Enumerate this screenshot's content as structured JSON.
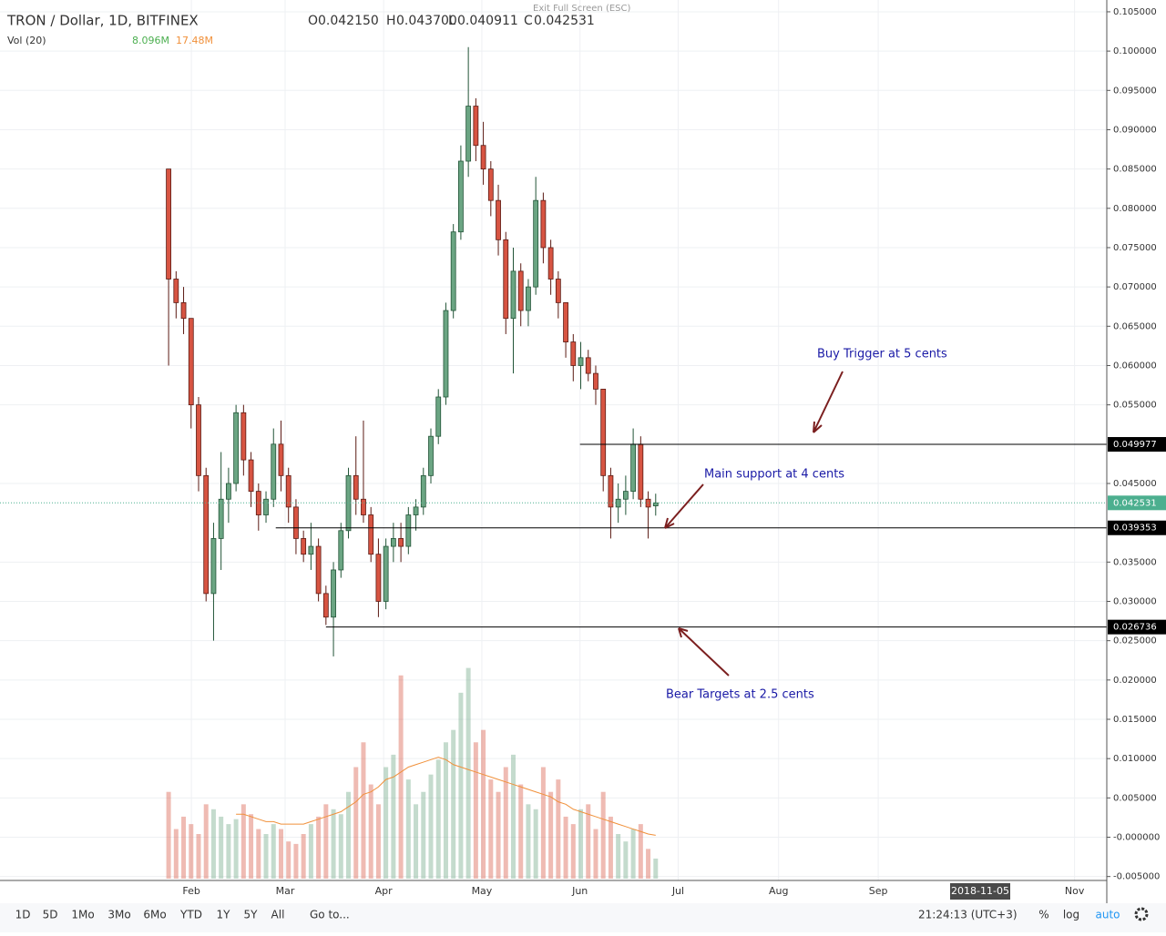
{
  "header": {
    "symbol": "TRON / Dollar, 1D, BITFINEX",
    "ohlc_letters": [
      "O",
      "H",
      "L",
      "C"
    ],
    "ohlc_values": [
      "0.042150",
      "0.043700",
      "0.040911",
      "0.042531"
    ],
    "vol_label": "Vol (20)",
    "vol_value": "8.096M",
    "vol_ma": "17.48M",
    "exit": "Exit Full Screen (ESC)"
  },
  "chart_data": {
    "type": "candlestick",
    "xlim": [
      -22.5,
      125.2
    ],
    "xticks": [
      {
        "value": 3.04,
        "label": "Feb"
      },
      {
        "value": 15.55,
        "label": "Mar"
      },
      {
        "value": 28.7,
        "label": "Apr"
      },
      {
        "value": 41.8,
        "label": "May"
      },
      {
        "value": 54.9,
        "label": "Jun"
      },
      {
        "value": 68.0,
        "label": "Jul"
      },
      {
        "value": 81.4,
        "label": "Aug"
      },
      {
        "value": 94.7,
        "label": "Sep"
      },
      {
        "value": 120.9,
        "label": "Nov"
      }
    ],
    "crosshair_label": "2018-11-05",
    "ylim": [
      -0.0055,
      0.1065
    ],
    "yticks": [
      {
        "value": 0.105,
        "label": "0.105000"
      },
      {
        "value": 0.1,
        "label": "0.100000"
      },
      {
        "value": 0.095,
        "label": "0.095000"
      },
      {
        "value": 0.09,
        "label": "0.090000"
      },
      {
        "value": 0.085,
        "label": "0.085000"
      },
      {
        "value": 0.08,
        "label": "0.080000"
      },
      {
        "value": 0.075,
        "label": "0.075000"
      },
      {
        "value": 0.07,
        "label": "0.070000"
      },
      {
        "value": 0.065,
        "label": "0.065000"
      },
      {
        "value": 0.06,
        "label": "0.060000"
      },
      {
        "value": 0.055,
        "label": "0.055000"
      },
      {
        "value": 0.045,
        "label": "0.045000"
      },
      {
        "value": 0.035,
        "label": "0.035000"
      },
      {
        "value": 0.03,
        "label": "0.030000"
      },
      {
        "value": 0.025,
        "label": "0.025000"
      },
      {
        "value": 0.02,
        "label": "0.020000"
      },
      {
        "value": 0.015,
        "label": "0.015000"
      },
      {
        "value": 0.01,
        "label": "0.010000"
      },
      {
        "value": 0.005,
        "label": "0.005000"
      },
      {
        "value": 0,
        "label": "-0.000000"
      },
      {
        "value": -0.005,
        "label": "-0.005000"
      }
    ],
    "grid": true,
    "up_color": "#6ba583",
    "down_color": "#d75442",
    "ohlc": [
      [
        0.085,
        0.085,
        0.06,
        0.071
      ],
      [
        0.071,
        0.072,
        0.066,
        0.068
      ],
      [
        0.068,
        0.07,
        0.064,
        0.066
      ],
      [
        0.066,
        0.066,
        0.052,
        0.055
      ],
      [
        0.055,
        0.056,
        0.044,
        0.046
      ],
      [
        0.046,
        0.047,
        0.03,
        0.031
      ],
      [
        0.031,
        0.04,
        0.025,
        0.038
      ],
      [
        0.038,
        0.049,
        0.034,
        0.043
      ],
      [
        0.043,
        0.047,
        0.04,
        0.045
      ],
      [
        0.045,
        0.055,
        0.044,
        0.054
      ],
      [
        0.054,
        0.055,
        0.046,
        0.048
      ],
      [
        0.048,
        0.049,
        0.042,
        0.044
      ],
      [
        0.044,
        0.045,
        0.039,
        0.041
      ],
      [
        0.041,
        0.044,
        0.04,
        0.043
      ],
      [
        0.043,
        0.052,
        0.042,
        0.05
      ],
      [
        0.05,
        0.053,
        0.044,
        0.046
      ],
      [
        0.046,
        0.047,
        0.04,
        0.042
      ],
      [
        0.042,
        0.043,
        0.036,
        0.038
      ],
      [
        0.038,
        0.039,
        0.035,
        0.036
      ],
      [
        0.036,
        0.04,
        0.034,
        0.037
      ],
      [
        0.037,
        0.038,
        0.03,
        0.031
      ],
      [
        0.031,
        0.032,
        0.027,
        0.028
      ],
      [
        0.028,
        0.035,
        0.023,
        0.034
      ],
      [
        0.034,
        0.04,
        0.033,
        0.039
      ],
      [
        0.039,
        0.047,
        0.038,
        0.046
      ],
      [
        0.046,
        0.051,
        0.041,
        0.043
      ],
      [
        0.043,
        0.053,
        0.04,
        0.041
      ],
      [
        0.041,
        0.042,
        0.035,
        0.036
      ],
      [
        0.036,
        0.038,
        0.028,
        0.03
      ],
      [
        0.03,
        0.038,
        0.029,
        0.037
      ],
      [
        0.037,
        0.04,
        0.035,
        0.038
      ],
      [
        0.038,
        0.04,
        0.035,
        0.037
      ],
      [
        0.037,
        0.042,
        0.036,
        0.041
      ],
      [
        0.041,
        0.043,
        0.039,
        0.042
      ],
      [
        0.042,
        0.047,
        0.041,
        0.046
      ],
      [
        0.046,
        0.052,
        0.045,
        0.051
      ],
      [
        0.051,
        0.057,
        0.05,
        0.056
      ],
      [
        0.056,
        0.068,
        0.055,
        0.067
      ],
      [
        0.067,
        0.078,
        0.066,
        0.077
      ],
      [
        0.077,
        0.088,
        0.076,
        0.086
      ],
      [
        0.086,
        0.1005,
        0.084,
        0.093
      ],
      [
        0.093,
        0.094,
        0.086,
        0.088
      ],
      [
        0.088,
        0.091,
        0.083,
        0.085
      ],
      [
        0.085,
        0.086,
        0.079,
        0.081
      ],
      [
        0.081,
        0.083,
        0.074,
        0.076
      ],
      [
        0.076,
        0.077,
        0.064,
        0.066
      ],
      [
        0.066,
        0.075,
        0.059,
        0.072
      ],
      [
        0.072,
        0.073,
        0.065,
        0.067
      ],
      [
        0.067,
        0.071,
        0.065,
        0.07
      ],
      [
        0.07,
        0.084,
        0.069,
        0.081
      ],
      [
        0.081,
        0.082,
        0.073,
        0.075
      ],
      [
        0.075,
        0.076,
        0.069,
        0.071
      ],
      [
        0.071,
        0.072,
        0.066,
        0.068
      ],
      [
        0.068,
        0.068,
        0.061,
        0.063
      ],
      [
        0.063,
        0.064,
        0.058,
        0.06
      ],
      [
        0.06,
        0.063,
        0.057,
        0.061
      ],
      [
        0.061,
        0.062,
        0.058,
        0.059
      ],
      [
        0.059,
        0.06,
        0.055,
        0.057
      ],
      [
        0.057,
        0.057,
        0.044,
        0.046
      ],
      [
        0.046,
        0.047,
        0.038,
        0.042
      ],
      [
        0.042,
        0.045,
        0.04,
        0.043
      ],
      [
        0.043,
        0.046,
        0.041,
        0.044
      ],
      [
        0.044,
        0.052,
        0.043,
        0.05
      ],
      [
        0.05,
        0.051,
        0.042,
        0.043
      ],
      [
        0.043,
        0.044,
        0.038,
        0.042
      ],
      [
        0.04215,
        0.0437,
        0.040911,
        0.042531
      ]
    ],
    "volume": {
      "ylim": [
        0,
        90
      ],
      "values": [
        35,
        20,
        25,
        22,
        18,
        30,
        28,
        25,
        22,
        24,
        30,
        26,
        20,
        18,
        22,
        20,
        15,
        14,
        18,
        22,
        25,
        30,
        28,
        26,
        35,
        45,
        55,
        38,
        30,
        45,
        50,
        82,
        40,
        30,
        35,
        42,
        48,
        55,
        60,
        75,
        85,
        55,
        60,
        40,
        35,
        45,
        50,
        38,
        30,
        28,
        45,
        35,
        40,
        25,
        22,
        28,
        30,
        20,
        35,
        25,
        18,
        15,
        20,
        22,
        12,
        8.096
      ],
      "ma": [
        null,
        null,
        null,
        null,
        null,
        null,
        null,
        null,
        null,
        26,
        26,
        25,
        24,
        23,
        23,
        22,
        22,
        22,
        22,
        23,
        24,
        25,
        26,
        27,
        29,
        31,
        34,
        35,
        37,
        40,
        41,
        43,
        45,
        46,
        47,
        48,
        49,
        48,
        46,
        45,
        44,
        43,
        42,
        41,
        40,
        39,
        38,
        37,
        36,
        35,
        34,
        33,
        31,
        30,
        28,
        27,
        26,
        25,
        24,
        23,
        22,
        21,
        20,
        19,
        18,
        17.48
      ],
      "ma_color": "#f0903a"
    },
    "levels": [
      {
        "value": 0.049977,
        "from": 54.9
      },
      {
        "value": 0.039353,
        "from": 14.3
      },
      {
        "value": 0.026736,
        "from": 21.0
      }
    ],
    "last_price": 0.042531,
    "annotations": [
      "Buy Trigger at 5 cents",
      "Main support at 4 cents",
      "Bear Targets at 2.5 cents"
    ]
  },
  "toolbar": {
    "ranges": [
      "1D",
      "5D",
      "1Mo",
      "3Mo",
      "6Mo",
      "YTD",
      "1Y",
      "5Y",
      "All"
    ],
    "goto": "Go to...",
    "clock": "21:24:13 (UTC+3)",
    "percent": "%",
    "log": "log",
    "auto": "auto"
  }
}
